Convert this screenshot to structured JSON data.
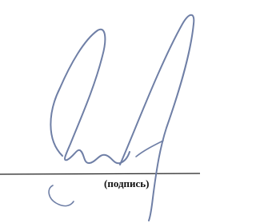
{
  "document": {
    "caption": "(подпись)"
  }
}
